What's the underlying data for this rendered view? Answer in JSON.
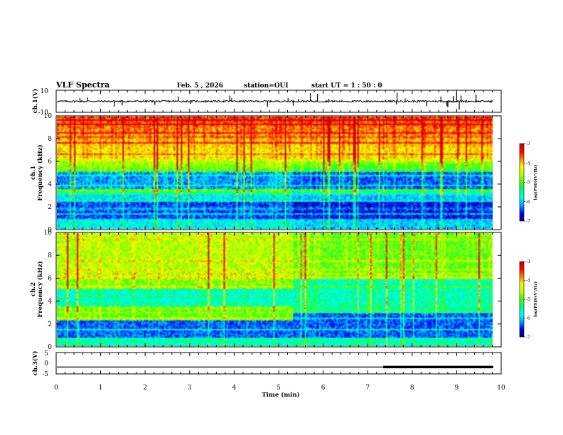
{
  "header": {
    "title": "VLF Spectra",
    "date": "Feb. 5 , 2026",
    "station": "station=OUI",
    "start": "start  UT =   1 : 50 : 0"
  },
  "chart_data": {
    "type": "heatmap",
    "xlabel": "Time (min)",
    "xlim": [
      0,
      10
    ],
    "xticks": [
      "0",
      "1",
      "2",
      "3",
      "4",
      "5",
      "6",
      "7",
      "8",
      "9",
      "10"
    ],
    "data_end_min": 9.82,
    "panels": {
      "ch1_waveform": {
        "ylabel": "ch.1(V)",
        "ylim": [
          -10,
          10
        ],
        "yticks": [
          "10",
          "-10"
        ],
        "baseline": 0
      },
      "ch1_spectrogram": {
        "ylabel_line1": "ch.1",
        "ylabel_line2": "Frequency (kHz)",
        "ylim": [
          0,
          10
        ],
        "yticks": [
          "0",
          "2",
          "4",
          "6",
          "8",
          "10"
        ]
      },
      "ch2_spectrogram": {
        "ylabel_line1": "ch.2",
        "ylabel_line2": "Frequency (kHz)",
        "ylim": [
          0,
          10
        ],
        "yticks": [
          "0",
          "2",
          "4",
          "6",
          "8",
          "10"
        ],
        "transition_min": 5.3
      },
      "ch3_waveform": {
        "ylabel": "ch.3(V)",
        "ylim": [
          -5,
          5
        ],
        "yticks": [
          "5",
          "0",
          "-5"
        ],
        "level": -1.8,
        "thick_from_min": 7.35
      }
    },
    "colorbar": {
      "label": "log(PSD)(V²/Hz)",
      "range": [
        -7,
        -3
      ],
      "ticks": [
        "-3",
        "-4",
        "-5",
        "-6",
        "-7"
      ],
      "colors": [
        "#000060",
        "#0000ff",
        "#00a0ff",
        "#00ffff",
        "#00ff80",
        "#40ff00",
        "#c0ff00",
        "#ffff00",
        "#ff8000",
        "#ff0000",
        "#d00000"
      ]
    }
  }
}
